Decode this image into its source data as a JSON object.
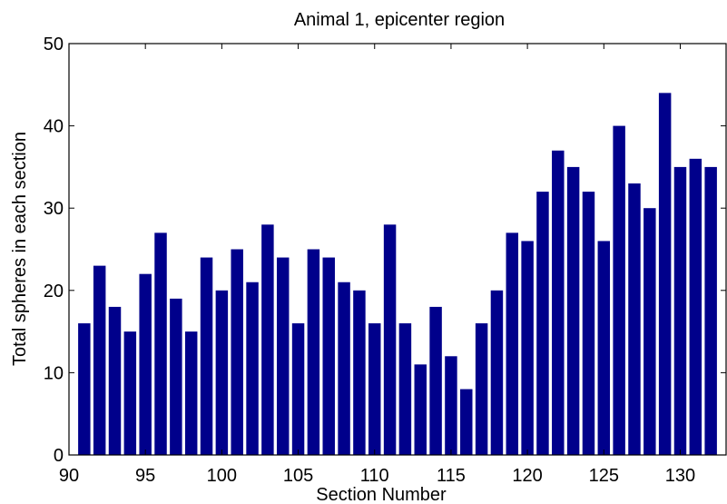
{
  "chart_data": {
    "type": "bar",
    "title": "Animal 1, epicenter region",
    "xlabel": "Section Number",
    "ylabel": "Total spheres in each section",
    "xlim": [
      90,
      133
    ],
    "ylim": [
      0,
      50
    ],
    "xticks": [
      90,
      95,
      100,
      105,
      110,
      115,
      120,
      125,
      130
    ],
    "yticks": [
      0,
      10,
      20,
      30,
      40,
      50
    ],
    "x": [
      91,
      92,
      93,
      94,
      95,
      96,
      97,
      98,
      99,
      100,
      101,
      102,
      103,
      104,
      105,
      106,
      107,
      108,
      109,
      110,
      111,
      112,
      113,
      114,
      115,
      116,
      117,
      118,
      119,
      120,
      121,
      122,
      123,
      124,
      125,
      126,
      127,
      128,
      129,
      130,
      131,
      132
    ],
    "values": [
      16,
      23,
      18,
      15,
      22,
      27,
      19,
      15,
      24,
      20,
      25,
      21,
      28,
      24,
      16,
      25,
      24,
      21,
      20,
      16,
      28,
      16,
      11,
      18,
      12,
      8,
      16,
      20,
      27,
      26,
      32,
      37,
      35,
      32,
      26,
      40,
      33,
      30,
      44,
      35,
      36,
      35
    ],
    "bar_color": "#00008b",
    "grid": false,
    "legend": "none"
  }
}
